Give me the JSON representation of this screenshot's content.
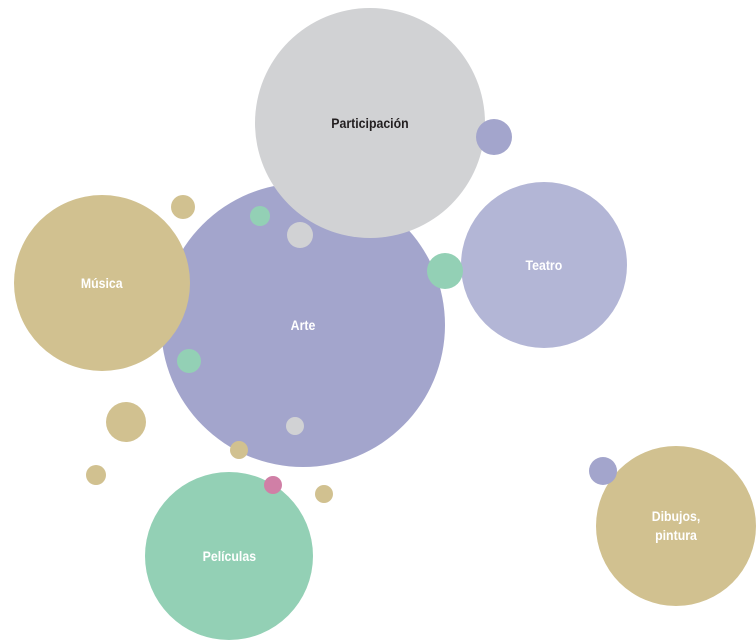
{
  "nodes": [
    {
      "label": "Arte"
    },
    {
      "label": "Participación"
    },
    {
      "label": "Música"
    },
    {
      "label": "Teatro"
    },
    {
      "label": "Películas"
    },
    {
      "label": "Dibujos, pintura"
    }
  ]
}
